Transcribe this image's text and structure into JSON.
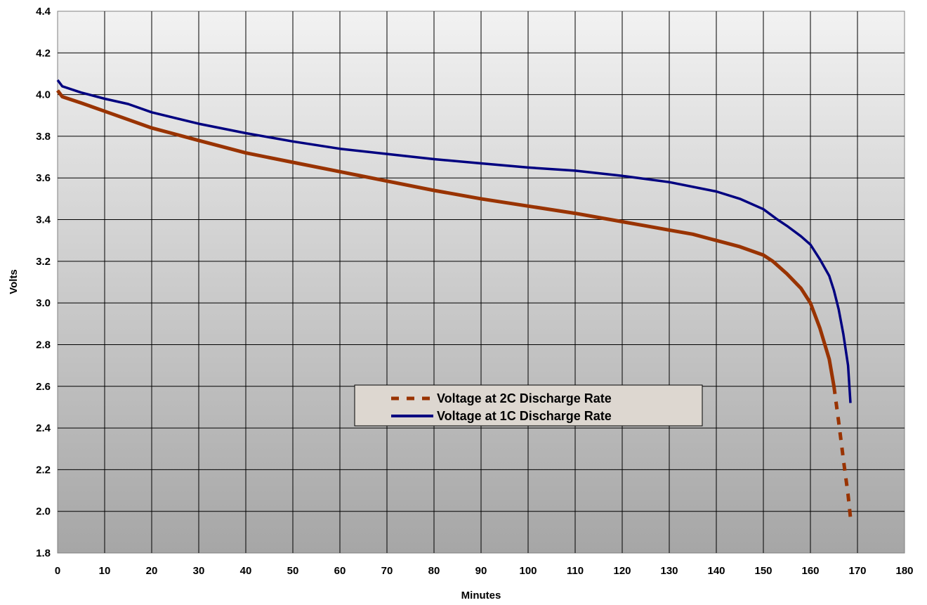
{
  "chart_data": {
    "type": "line",
    "title": "",
    "xlabel": "Minutes",
    "ylabel": "Volts",
    "xlim": [
      0,
      180
    ],
    "ylim": [
      1.8,
      4.4
    ],
    "x_ticks": [
      "0",
      "10",
      "20",
      "30",
      "40",
      "50",
      "60",
      "70",
      "80",
      "90",
      "100",
      "110",
      "120",
      "130",
      "140",
      "150",
      "160",
      "170",
      "180"
    ],
    "y_ticks": [
      "1.8",
      "2.0",
      "2.2",
      "2.4",
      "2.6",
      "2.8",
      "3.0",
      "3.2",
      "3.4",
      "3.6",
      "3.8",
      "4.0",
      "4.2",
      "4.4"
    ],
    "grid": true,
    "legend_position": "center",
    "series": [
      {
        "name": "Voltage at 2C Discharge Rate",
        "color": "#993300",
        "style": "solid-then-dashed",
        "dash_from_x": 165,
        "x": [
          0,
          1,
          5,
          10,
          15,
          20,
          30,
          40,
          50,
          60,
          70,
          80,
          90,
          100,
          110,
          120,
          125,
          130,
          135,
          140,
          145,
          150,
          152,
          155,
          158,
          160,
          162,
          164,
          165,
          166,
          167,
          168,
          168.5
        ],
        "values": [
          4.02,
          3.99,
          3.96,
          3.92,
          3.88,
          3.84,
          3.78,
          3.72,
          3.675,
          3.63,
          3.585,
          3.54,
          3.5,
          3.465,
          3.43,
          3.39,
          3.37,
          3.35,
          3.33,
          3.3,
          3.27,
          3.23,
          3.2,
          3.14,
          3.07,
          3.0,
          2.88,
          2.73,
          2.6,
          2.43,
          2.25,
          2.08,
          1.97
        ]
      },
      {
        "name": "Voltage at 1C Discharge Rate",
        "color": "#000080",
        "style": "solid",
        "x": [
          0,
          1,
          5,
          10,
          15,
          20,
          30,
          40,
          50,
          60,
          70,
          80,
          90,
          100,
          110,
          120,
          130,
          140,
          145,
          150,
          153,
          155,
          158,
          160,
          162,
          164,
          165,
          166,
          167,
          168,
          168.5
        ],
        "values": [
          4.07,
          4.04,
          4.01,
          3.98,
          3.955,
          3.915,
          3.86,
          3.815,
          3.775,
          3.74,
          3.715,
          3.69,
          3.67,
          3.65,
          3.635,
          3.61,
          3.58,
          3.535,
          3.5,
          3.45,
          3.4,
          3.37,
          3.32,
          3.28,
          3.21,
          3.13,
          3.06,
          2.97,
          2.85,
          2.7,
          2.52
        ]
      }
    ]
  }
}
